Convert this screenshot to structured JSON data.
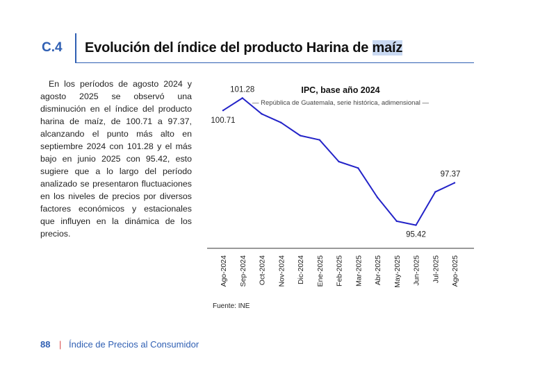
{
  "section": {
    "code": "C.4",
    "title_main": "Evolución del índice del producto Harina de ",
    "title_highlight": "maíz"
  },
  "body_text": "En los períodos de agosto 2024 y agosto 2025 se observó una disminución en el índice del producto harina de maíz, de 100.71 a 97.37, alcanzando el punto más alto en septiembre 2024 con 101.28 y el más bajo en junio 2025 con 95.42, esto sugiere que a lo largo del período analizado se presentaron fluctuaciones en los niveles de precios por diversos factores económicos y estacionales que influyen en la dinámica de los precios.",
  "source": "Fuente: INE",
  "footer": {
    "page_number": "88",
    "separator": "|",
    "publication": "Índice de Precios al Consumidor"
  },
  "colors": {
    "accent": "#2f5fb3",
    "line": "#2323c8",
    "separator": "#d94b4b",
    "highlight": "#c9d9f2"
  },
  "chart_data": {
    "type": "line",
    "title": "IPC, base año 2024",
    "subtitle": "— República de Guatemala, serie histórica, adimensional —",
    "xlabel": "",
    "ylabel": "",
    "categories": [
      "Ago-2024",
      "Sep-2024",
      "Oct-2024",
      "Nov-2024",
      "Dic-2024",
      "Ene-2025",
      "Feb-2025",
      "Mar-2025",
      "Abr-2025",
      "May-2025",
      "Jun-2025",
      "Jul-2025",
      "Ago-2025"
    ],
    "values": [
      100.71,
      101.28,
      100.55,
      100.15,
      99.55,
      99.35,
      98.35,
      98.05,
      96.7,
      95.6,
      95.42,
      96.95,
      97.37
    ],
    "data_labels": [
      {
        "index": 0,
        "text": "100.71"
      },
      {
        "index": 1,
        "text": "101.28"
      },
      {
        "index": 10,
        "text": "95.42"
      },
      {
        "index": 12,
        "text": "97.37"
      }
    ],
    "ylim": [
      94.35,
      101.9
    ],
    "grid": false,
    "legend": "none"
  }
}
